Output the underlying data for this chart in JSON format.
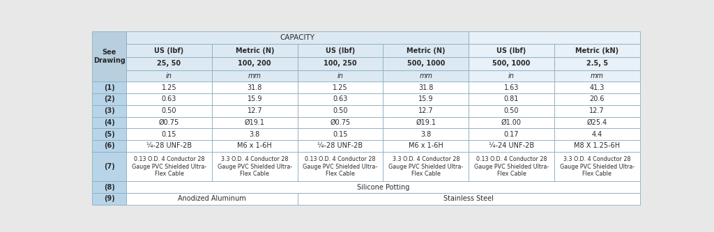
{
  "bg_color": "#e8e8e8",
  "table_bg": "#ffffff",
  "header_bg_dark": "#b8cfe0",
  "header_bg_light": "#dce9f3",
  "header_bg_lighter": "#e8f0f8",
  "row_label_bg": "#b8d4e8",
  "border_color": "#8aacbf",
  "text_color": "#2a2a2a",
  "title": "CAPACITY",
  "col_header_row1": [
    "US (lbf)",
    "Metric (N)",
    "US (lbf)",
    "Metric (N)",
    "US (lbf)",
    "Metric (kN)"
  ],
  "col_header_row2": [
    "25, 50",
    "100, 200",
    "100, 250",
    "500, 1000",
    "500, 1000",
    "2.5, 5"
  ],
  "col_header_row3": [
    "in",
    "mm",
    "in",
    "mm",
    "in",
    "mm"
  ],
  "row_labels": [
    "(1)",
    "(2)",
    "(3)",
    "(4)",
    "(5)",
    "(6)",
    "(7)",
    "(8)",
    "(9)"
  ],
  "data_rows": [
    [
      "1.25",
      "31.8",
      "1.25",
      "31.8",
      "1.63",
      "41.3"
    ],
    [
      "0.63",
      "15.9",
      "0.63",
      "15.9",
      "0.81",
      "20.6"
    ],
    [
      "0.50",
      "12.7",
      "0.50",
      "12.7",
      "0.50",
      "12.7"
    ],
    [
      "Ø0.75",
      "Ø19.1",
      "Ø0.75",
      "Ø19.1",
      "Ø1.00",
      "Ø25.4"
    ],
    [
      "0.15",
      "3.8",
      "0.15",
      "3.8",
      "0.17",
      "4.4"
    ],
    [
      "¼-28 UNF-2B",
      "M6 x 1-6H",
      "¼-28 UNF-2B",
      "M6 x 1-6H",
      "¼-24 UNF-2B",
      "M8 X 1.25-6H"
    ],
    [
      "0.13 O.D. 4 Conductor 28\nGauge PVC Shielded Ultra-\nFlex Cable",
      "3.3 O.D. 4 Conductor 28\nGauge PVC Shielded Ultra-\nFlex Cable",
      "0.13 O.D. 4 Conductor 28\nGauge PVC Shielded Ultra-\nFlex Cable",
      "3.3 O.D. 4 Conductor 28\nGauge PVC Shielded Ultra-\nFlex Cable",
      "0.13 O.D. 4 Conductor 28\nGauge PVC Shielded Ultra-\nFlex Cable",
      "3.3 O.D. 4 Conductor 28\nGauge PVC Shielded Ultra-\nFlex Cable"
    ],
    [
      "Silicone Potting",
      "",
      "",
      "",
      "",
      ""
    ],
    [
      "Anodized Aluminum",
      "",
      "Stainless Steel",
      "",
      "",
      ""
    ]
  ],
  "capacity_title_span": 4,
  "figsize": [
    10.24,
    3.33
  ],
  "dpi": 100
}
